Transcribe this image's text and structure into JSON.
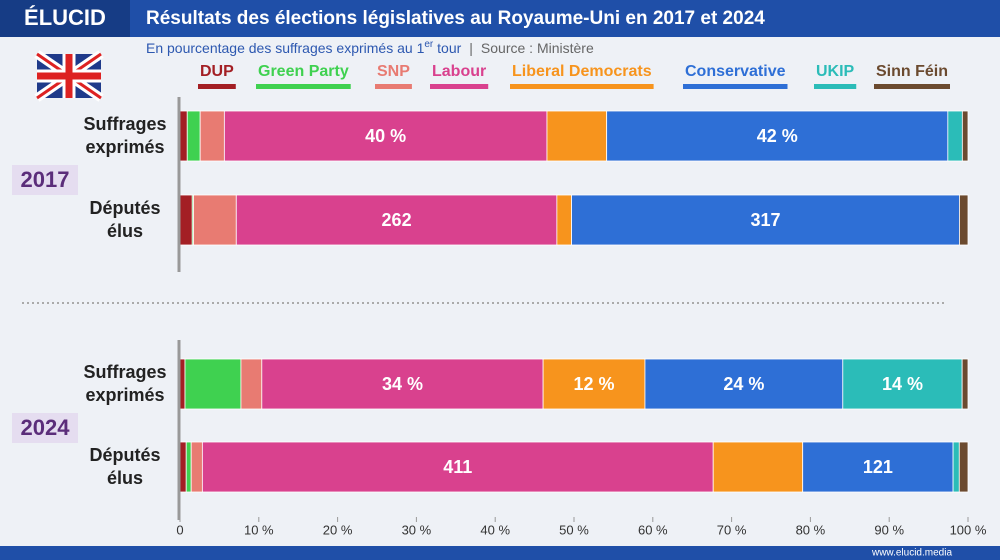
{
  "header": {
    "logo": "ÉLUCID",
    "title": "Résultats des élections législatives au Royaume-Uni en 2017 et 2024",
    "subtitle": "En pourcentage des suffrages exprimés au 1",
    "subtitle_sup": "er",
    "subtitle_end": " tour",
    "source": "Source : Ministère"
  },
  "footer": "www.elucid.media",
  "chart_data": [
    {
      "type": "bar",
      "orientation": "horizontal",
      "stacked": "percent",
      "title": "2017",
      "legend": "top",
      "categories": [
        "Suffrages exprimés",
        "Députés élus"
      ],
      "xlim": [
        0,
        100
      ],
      "series": [
        {
          "name": "DUP",
          "color": "#a31f24",
          "values": [
            0.9,
            10
          ],
          "value_labels": [
            null,
            null
          ]
        },
        {
          "name": "Green Party",
          "color": "#3fd150",
          "values": [
            1.6,
            1
          ],
          "value_labels": [
            null,
            null
          ]
        },
        {
          "name": "SNP",
          "color": "#e87b72",
          "values": [
            3.0,
            35
          ],
          "value_labels": [
            null,
            null
          ]
        },
        {
          "name": "Labour",
          "color": "#d9418e",
          "values": [
            40.0,
            262
          ],
          "value_labels": [
            "40 %",
            "262"
          ]
        },
        {
          "name": "Liberal Democrats",
          "color": "#f7941d",
          "values": [
            7.4,
            12
          ],
          "value_labels": [
            null,
            null
          ]
        },
        {
          "name": "Conservative",
          "color": "#2e6fd6",
          "values": [
            42.3,
            317
          ],
          "value_labels": [
            "42 %",
            "317"
          ]
        },
        {
          "name": "UKIP",
          "color": "#2bbcb8",
          "values": [
            1.8,
            0
          ],
          "value_labels": [
            null,
            null
          ]
        },
        {
          "name": "Sinn Féin",
          "color": "#6b4a2f",
          "values": [
            0.7,
            7
          ],
          "value_labels": [
            null,
            null
          ]
        }
      ]
    },
    {
      "type": "bar",
      "orientation": "horizontal",
      "stacked": "percent",
      "title": "2024",
      "categories": [
        "Suffrages exprimés",
        "Députés élus"
      ],
      "xlim": [
        0,
        100
      ],
      "xticks": [
        0,
        {
          "value": 10,
          "label": "10 %"
        },
        {
          "value": 20,
          "label": "20 %"
        },
        {
          "value": 30,
          "label": "30 %"
        },
        {
          "value": 40,
          "label": "40 %"
        },
        {
          "value": 50,
          "label": "50 %"
        },
        {
          "value": 60,
          "label": "60 %"
        },
        {
          "value": 70,
          "label": "70 %"
        },
        {
          "value": 80,
          "label": "80 %"
        },
        {
          "value": 90,
          "label": "90 %"
        },
        {
          "value": 100,
          "label": "100 %"
        }
      ],
      "series": [
        {
          "color": "#a31f24",
          "values": [
            0.6,
            5
          ],
          "value_labels": [
            null,
            null
          ]
        },
        {
          "color": "#3fd150",
          "values": [
            6.7,
            4
          ],
          "value_labels": [
            null,
            null
          ]
        },
        {
          "color": "#e87b72",
          "values": [
            2.5,
            9
          ],
          "value_labels": [
            null,
            null
          ]
        },
        {
          "color": "#d9418e",
          "values": [
            33.7,
            411
          ],
          "value_labels": [
            "34 %",
            "411"
          ]
        },
        {
          "color": "#f7941d",
          "values": [
            12.2,
            72
          ],
          "value_labels": [
            "12 %",
            null
          ]
        },
        {
          "color": "#2e6fd6",
          "values": [
            23.7,
            121
          ],
          "value_labels": [
            "24 %",
            "121"
          ]
        },
        {
          "color": "#2bbcb8",
          "values": [
            14.3,
            5
          ],
          "value_labels": [
            "14 %",
            null
          ]
        },
        {
          "color": "#6b4a2f",
          "values": [
            0.7,
            7
          ],
          "value_labels": [
            null,
            null
          ]
        }
      ]
    }
  ]
}
